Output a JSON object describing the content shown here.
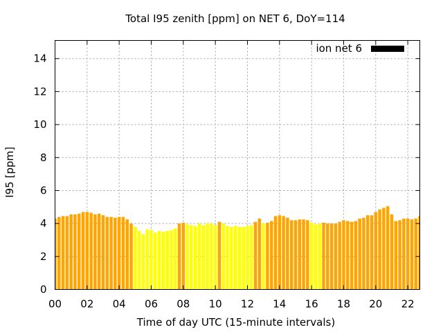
{
  "chart_data": {
    "type": "bar",
    "title": "Total I95 zenith [ppm] on NET 6, DoY=114",
    "xlabel": "Time of day UTC (15-minute intervals)",
    "ylabel": "I95 [ppm]",
    "xlim": [
      0,
      22.75
    ],
    "ylim": [
      0,
      15.1
    ],
    "x_ticks": [
      "00",
      "02",
      "04",
      "06",
      "08",
      "10",
      "12",
      "14",
      "16",
      "18",
      "20",
      "22"
    ],
    "y_ticks": [
      "0",
      "2",
      "4",
      "6",
      "8",
      "10",
      "12",
      "14"
    ],
    "grid": true,
    "legend": {
      "label": "ion net 6",
      "color": "#000000",
      "placement": "top-right"
    },
    "colors": {
      "orange": "#ffa500",
      "yellow": "#ffff00"
    },
    "bar_interval_hours": 0.25,
    "series": [
      {
        "values": [
          4.3,
          4.4,
          4.45,
          4.45,
          4.55,
          4.55,
          4.6,
          4.7,
          4.7,
          4.65,
          4.55,
          4.6,
          4.5,
          4.4,
          4.4,
          4.35,
          4.4,
          4.4,
          4.25,
          4.0,
          3.8,
          3.55,
          3.35,
          3.65,
          3.6,
          3.45,
          3.55,
          3.5,
          3.55,
          3.6,
          3.7,
          4.0,
          4.05,
          3.95,
          3.9,
          3.85,
          4.0,
          3.9,
          4.0,
          4.0,
          3.9,
          4.1,
          4.0,
          3.85,
          3.8,
          3.85,
          3.8,
          3.8,
          3.85,
          3.9,
          4.1,
          4.3,
          4.0,
          4.05,
          4.15,
          4.45,
          4.5,
          4.45,
          4.35,
          4.2,
          4.2,
          4.25,
          4.25,
          4.2,
          4.05,
          3.95,
          4.0,
          4.05,
          4.0,
          4.0,
          4.0,
          4.1,
          4.2,
          4.15,
          4.1,
          4.15,
          4.3,
          4.35,
          4.5,
          4.5,
          4.7,
          4.85,
          4.95,
          5.05,
          4.55,
          4.15,
          4.2,
          4.3,
          4.3,
          4.25,
          4.3,
          4.45
        ],
        "colors": [
          "orange",
          "orange",
          "orange",
          "orange",
          "orange",
          "orange",
          "orange",
          "orange",
          "orange",
          "orange",
          "orange",
          "orange",
          "orange",
          "orange",
          "orange",
          "orange",
          "orange",
          "orange",
          "orange",
          "orange",
          "yellow",
          "yellow",
          "yellow",
          "yellow",
          "yellow",
          "yellow",
          "yellow",
          "yellow",
          "yellow",
          "yellow",
          "yellow",
          "orange",
          "orange",
          "yellow",
          "yellow",
          "yellow",
          "yellow",
          "yellow",
          "yellow",
          "yellow",
          "yellow",
          "orange",
          "yellow",
          "yellow",
          "yellow",
          "yellow",
          "yellow",
          "yellow",
          "yellow",
          "yellow",
          "orange",
          "orange",
          "yellow",
          "orange",
          "orange",
          "orange",
          "orange",
          "orange",
          "orange",
          "orange",
          "orange",
          "orange",
          "orange",
          "orange",
          "yellow",
          "yellow",
          "yellow",
          "orange",
          "orange",
          "orange",
          "orange",
          "orange",
          "orange",
          "orange",
          "orange",
          "orange",
          "orange",
          "orange",
          "orange",
          "orange",
          "orange",
          "orange",
          "orange",
          "orange",
          "orange",
          "orange",
          "orange",
          "orange",
          "orange",
          "orange",
          "orange",
          "orange"
        ]
      }
    ]
  }
}
